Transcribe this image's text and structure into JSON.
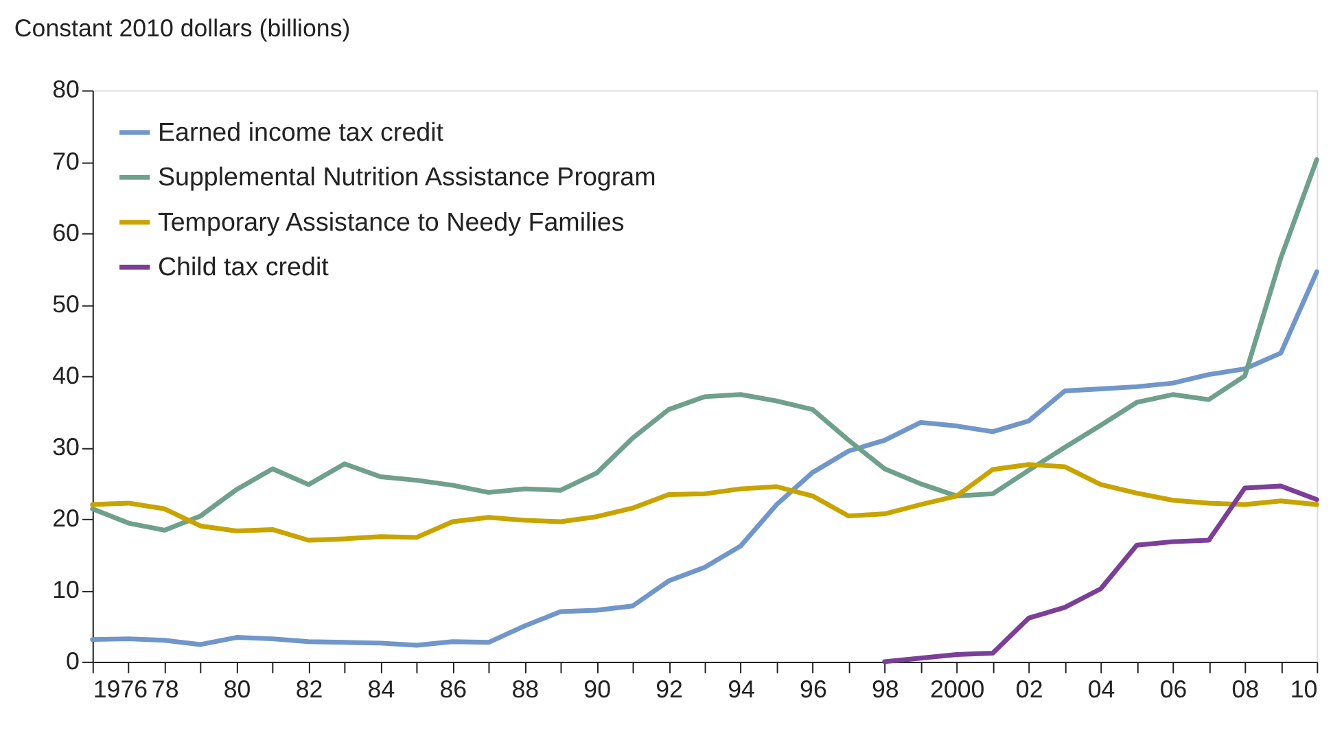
{
  "chart_data": {
    "type": "line",
    "ylabel": "Constant 2010 dollars (billions)",
    "x": [
      1976,
      1977,
      1978,
      1979,
      1980,
      1981,
      1982,
      1983,
      1984,
      1985,
      1986,
      1987,
      1988,
      1989,
      1990,
      1991,
      1992,
      1993,
      1994,
      1995,
      1996,
      1997,
      1998,
      1999,
      2000,
      2001,
      2002,
      2003,
      2004,
      2005,
      2006,
      2007,
      2008,
      2009,
      2010
    ],
    "series": [
      {
        "name": "Earned income tax credit",
        "color": "#7096ca",
        "values": [
          3.1,
          3.2,
          3.0,
          2.4,
          3.4,
          3.2,
          2.8,
          2.7,
          2.6,
          2.3,
          2.8,
          2.7,
          5.0,
          7.0,
          7.2,
          7.8,
          11.3,
          13.2,
          16.2,
          22.0,
          26.5,
          29.5,
          31.0,
          33.5,
          33.0,
          32.2,
          33.7,
          37.9,
          38.2,
          38.5,
          39.0,
          40.2,
          41.0,
          43.2,
          54.6
        ]
      },
      {
        "name": "Supplemental Nutrition Assistance Program",
        "color": "#6fa08c",
        "values": [
          21.4,
          19.4,
          18.4,
          20.4,
          24.1,
          27.0,
          24.8,
          27.7,
          25.9,
          25.4,
          24.7,
          23.7,
          24.2,
          24.0,
          26.4,
          31.3,
          35.3,
          37.1,
          37.4,
          36.5,
          35.3,
          31.0,
          27.0,
          24.9,
          23.2,
          23.5,
          26.8,
          30.0,
          33.1,
          36.3,
          37.4,
          36.7,
          40.0,
          56.5,
          70.3
        ]
      },
      {
        "name": "Temporary Assistance to Needy Families",
        "color": "#c8a400",
        "values": [
          22.0,
          22.2,
          21.4,
          19.0,
          18.3,
          18.5,
          17.0,
          17.2,
          17.5,
          17.4,
          19.6,
          20.2,
          19.8,
          19.6,
          20.3,
          21.5,
          23.4,
          23.5,
          24.2,
          24.5,
          23.2,
          20.4,
          20.7,
          22.0,
          23.2,
          26.9,
          27.6,
          27.3,
          24.8,
          23.6,
          22.6,
          22.2,
          22.0,
          22.5,
          22.0
        ]
      },
      {
        "name": "Child tax credit",
        "color": "#7b3f98",
        "x": [
          1998,
          1999,
          2000,
          2001,
          2002,
          2003,
          2004,
          2005,
          2006,
          2007,
          2008,
          2009,
          2010
        ],
        "values": [
          0.0,
          0.5,
          1.0,
          1.2,
          6.1,
          7.6,
          10.2,
          16.3,
          16.8,
          17.0,
          24.3,
          24.6,
          22.7
        ]
      }
    ],
    "xlim": [
      1976,
      2010
    ],
    "xticks": [
      1976,
      {
        "value": 1977,
        "label": null
      },
      {
        "value": 1978,
        "label": "78"
      },
      {
        "value": 1979,
        "label": null
      },
      {
        "value": 1980,
        "label": "80"
      },
      {
        "value": 1981,
        "label": null
      },
      {
        "value": 1982,
        "label": "82"
      },
      {
        "value": 1983,
        "label": null
      },
      {
        "value": 1984,
        "label": "84"
      },
      {
        "value": 1985,
        "label": null
      },
      {
        "value": 1986,
        "label": "86"
      },
      {
        "value": 1987,
        "label": null
      },
      {
        "value": 1988,
        "label": "88"
      },
      {
        "value": 1989,
        "label": null
      },
      {
        "value": 1990,
        "label": "90"
      },
      {
        "value": 1991,
        "label": null
      },
      {
        "value": 1992,
        "label": "92"
      },
      {
        "value": 1993,
        "label": null
      },
      {
        "value": 1994,
        "label": "94"
      },
      {
        "value": 1995,
        "label": null
      },
      {
        "value": 1996,
        "label": "96"
      },
      {
        "value": 1997,
        "label": null
      },
      {
        "value": 1998,
        "label": "98"
      },
      {
        "value": 1999,
        "label": null
      },
      2000,
      {
        "value": 2001,
        "label": null
      },
      {
        "value": 2002,
        "label": "02"
      },
      {
        "value": 2003,
        "label": null
      },
      {
        "value": 2004,
        "label": "04"
      },
      {
        "value": 2005,
        "label": null
      },
      {
        "value": 2006,
        "label": "06"
      },
      {
        "value": 2007,
        "label": null
      },
      {
        "value": 2008,
        "label": "08"
      },
      {
        "value": 2009,
        "label": null
      },
      {
        "value": 2010,
        "label": "10"
      }
    ],
    "ylim": [
      0,
      80
    ],
    "yticks": [
      0,
      10,
      20,
      30,
      40,
      50,
      60,
      70,
      80
    ],
    "grid": false,
    "legend": "top left",
    "marker": "none",
    "line_style": "solid"
  }
}
